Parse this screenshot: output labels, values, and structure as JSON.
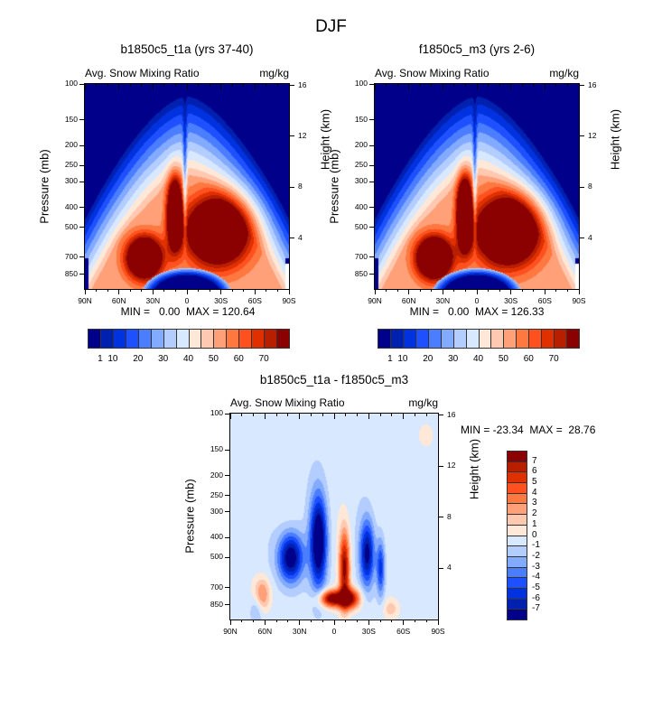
{
  "figure_title": "DJF",
  "colors": {
    "palette": [
      "#00008b",
      "#0020b0",
      "#0032e0",
      "#1e50ff",
      "#4b7dff",
      "#82aaff",
      "#b4cdff",
      "#d7e8ff",
      "#ffe8d8",
      "#ffc8b0",
      "#ffa078",
      "#ff7840",
      "#ff5020",
      "#e03000",
      "#b81e00",
      "#8b0000"
    ]
  },
  "chart_data": [
    {
      "type": "heatmap",
      "name": "panel-b1850",
      "title": "b1850c5_t1a (yrs 37-40)",
      "left_string": "Avg. Snow Mixing Ratio",
      "right_string": "mg/kg",
      "xlabel": "",
      "ylabel": "Pressure (mb)",
      "ylabel_right": "Height (km)",
      "x_ticks": [
        "90N",
        "60N",
        "30N",
        "0",
        "30S",
        "60S",
        "90S"
      ],
      "y_ticks": [
        "100",
        "150",
        "200",
        "250",
        "300",
        "400",
        "500",
        "700",
        "850"
      ],
      "y_ticks_right": [
        "16",
        "12",
        "8",
        "4"
      ],
      "xlim": [
        "90N",
        "90S"
      ],
      "ylim_mb": [
        1000,
        100
      ],
      "min_label": "MIN =   0.00  MAX = 120.64",
      "min": 0.0,
      "max": 120.64,
      "colorbar": {
        "orientation": "horizontal",
        "levels": [
          1,
          5,
          10,
          15,
          20,
          25,
          30,
          35,
          40,
          45,
          50,
          55,
          60,
          65,
          70
        ],
        "labels": [
          "1",
          "10",
          "20",
          "30",
          "40",
          "50",
          "60",
          "70"
        ]
      }
    },
    {
      "type": "heatmap",
      "name": "panel-f1850",
      "title": "f1850c5_m3 (yrs 2-6)",
      "left_string": "Avg. Snow Mixing Ratio",
      "right_string": "mg/kg",
      "xlabel": "",
      "ylabel": "Pressure (mb)",
      "ylabel_right": "Height (km)",
      "x_ticks": [
        "90N",
        "60N",
        "30N",
        "0",
        "30S",
        "60S",
        "90S"
      ],
      "y_ticks": [
        "100",
        "150",
        "200",
        "250",
        "300",
        "400",
        "500",
        "700",
        "850"
      ],
      "y_ticks_right": [
        "16",
        "12",
        "8",
        "4"
      ],
      "xlim": [
        "90N",
        "90S"
      ],
      "ylim_mb": [
        1000,
        100
      ],
      "min_label": "MIN =   0.00  MAX = 126.33",
      "min": 0.0,
      "max": 126.33,
      "colorbar": {
        "orientation": "horizontal",
        "levels": [
          1,
          5,
          10,
          15,
          20,
          25,
          30,
          35,
          40,
          45,
          50,
          55,
          60,
          65,
          70
        ],
        "labels": [
          "1",
          "10",
          "20",
          "30",
          "40",
          "50",
          "60",
          "70"
        ]
      }
    },
    {
      "type": "heatmap",
      "name": "panel-diff",
      "title": "b1850c5_t1a - f1850c5_m3",
      "left_string": "Avg. Snow Mixing Ratio",
      "right_string": "mg/kg",
      "xlabel": "",
      "ylabel": "Pressure (mb)",
      "ylabel_right": "Height (km)",
      "x_ticks": [
        "90N",
        "60N",
        "30N",
        "0",
        "30S",
        "60S",
        "90S"
      ],
      "y_ticks": [
        "100",
        "150",
        "200",
        "250",
        "300",
        "400",
        "500",
        "700",
        "850"
      ],
      "y_ticks_right": [
        "16",
        "12",
        "8",
        "4"
      ],
      "xlim": [
        "90N",
        "90S"
      ],
      "ylim_mb": [
        1000,
        100
      ],
      "min_label": "MIN = -23.34  MAX =  28.76",
      "min": -23.34,
      "max": 28.76,
      "colorbar": {
        "orientation": "vertical",
        "levels": [
          -7,
          -6,
          -5,
          -4,
          -3,
          -2,
          -1,
          0,
          1,
          2,
          3,
          4,
          5,
          6,
          7
        ],
        "labels": [
          "7",
          "6",
          "5",
          "4",
          "3",
          "2",
          "1",
          "0",
          "-1",
          "-2",
          "-3",
          "-4",
          "-5",
          "-6",
          "-7"
        ]
      }
    }
  ]
}
